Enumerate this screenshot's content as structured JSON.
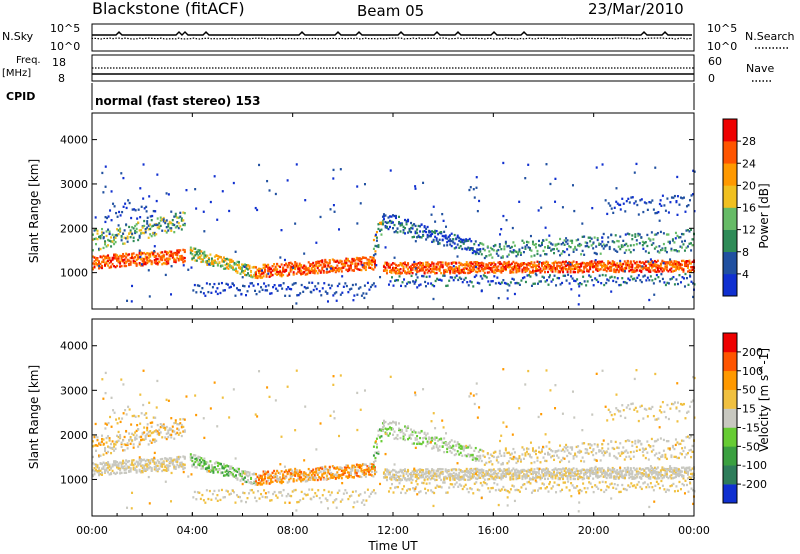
{
  "header": {
    "site": "Blackstone (fitACF)",
    "beam": "Beam 05",
    "date": "23/Mar/2010"
  },
  "status_panels": {
    "nsky_label": "N.Sky",
    "nsky_ticks": [
      "10^5",
      "10^0"
    ],
    "nsearch_label": "N.Search",
    "nsearch_ticks": [
      "10^5",
      "10^0"
    ],
    "freq_label": "Freq.",
    "freq_unit": "[MHz]",
    "freq_ticks": [
      "18",
      "8"
    ],
    "nave_label": "Nave",
    "nave_ticks": [
      "60",
      "0"
    ],
    "cpid_label": "CPID",
    "cpid_value": "normal (fast stereo) 153"
  },
  "colors": {
    "power_scale": [
      "#1030d0",
      "#2050a0",
      "#2e8b57",
      "#66bb66",
      "#f0c020",
      "#ff9900",
      "#ff5500",
      "#ee0000"
    ],
    "velocity_scale": [
      "#1030d0",
      "#2e7d5a",
      "#3aa040",
      "#66cc33",
      "#c8c8c0",
      "#f0c040",
      "#ff9900",
      "#ff5500",
      "#ee0000"
    ]
  },
  "chart_data": [
    {
      "type": "heatmap",
      "quantity": "power",
      "ylabel": "Slant Range [km]",
      "xlabel": "Time UT",
      "ylim": [
        180,
        4600
      ],
      "xlim": [
        0,
        24
      ],
      "yticks": [
        1000,
        2000,
        3000,
        4000
      ],
      "xtick_labels": [
        "00:00",
        "04:00",
        "08:00",
        "12:00",
        "16:00",
        "20:00",
        "00:00"
      ],
      "colorbar": {
        "label": "Power [dB]",
        "range": [
          0,
          32
        ],
        "ticks": [
          "4",
          "8",
          "12",
          "16",
          "20",
          "24",
          "28"
        ]
      }
    },
    {
      "type": "heatmap",
      "quantity": "velocity",
      "ylabel": "Slant Range [km]",
      "xlabel": "Time UT",
      "ylim": [
        180,
        4600
      ],
      "xlim": [
        0,
        24
      ],
      "yticks": [
        1000,
        2000,
        3000,
        4000
      ],
      "xtick_labels": [
        "00:00",
        "04:00",
        "08:00",
        "12:00",
        "16:00",
        "20:00",
        "00:00"
      ],
      "colorbar": {
        "label": "Velocity [m s^-1]",
        "ticks": [
          "200",
          "100",
          "50",
          "15",
          "-15",
          "-50",
          "-100",
          "-200"
        ]
      }
    }
  ]
}
